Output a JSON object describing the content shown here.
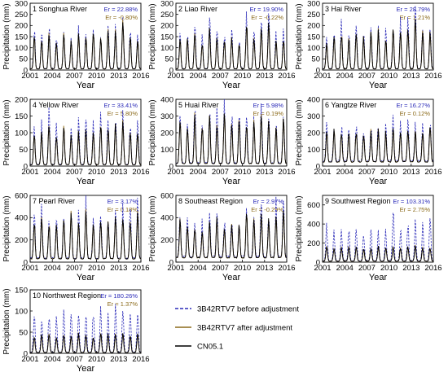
{
  "chart_data": [
    {
      "type": "line",
      "title": "1 Songhua River",
      "xlabel": "Year",
      "ylabel": "Precipitation (mm)",
      "ylim": [
        0,
        300
      ],
      "yticks": [
        0,
        50,
        100,
        150,
        200,
        250,
        300
      ],
      "x_ticks": [
        "2001",
        "2004",
        "2007",
        "2010",
        "2013",
        "2016"
      ],
      "x_range": [
        2001,
        2016
      ],
      "er_before": "Er = 22.88%",
      "er_after": "Er = -0.80%",
      "annual_peaks_cn05": [
        150,
        140,
        160,
        130,
        155,
        125,
        160,
        150,
        170,
        140,
        180,
        165,
        230,
        150,
        140
      ],
      "dry_min": 5
    },
    {
      "type": "line",
      "title": "2 Liao River",
      "xlabel": "Year",
      "ylabel": "Precipitation (mm)",
      "ylim": [
        0,
        300
      ],
      "yticks": [
        0,
        50,
        100,
        150,
        200,
        250,
        300
      ],
      "x_ticks": [
        "2001",
        "2004",
        "2007",
        "2010",
        "2013",
        "2016"
      ],
      "x_range": [
        2001,
        2016
      ],
      "er_before": "Er = 19.90%",
      "er_after": "Er = -0.22%",
      "annual_peaks_cn05": [
        130,
        140,
        160,
        120,
        190,
        150,
        130,
        145,
        120,
        210,
        150,
        200,
        215,
        130,
        140
      ],
      "dry_min": 5
    },
    {
      "type": "line",
      "title": "3 Hai River",
      "xlabel": "Year",
      "ylabel": "Precipitation (mm)",
      "ylim": [
        0,
        300
      ],
      "yticks": [
        0,
        50,
        100,
        150,
        200,
        250,
        300
      ],
      "x_ticks": [
        "2001",
        "2004",
        "2007",
        "2010",
        "2013",
        "2016"
      ],
      "x_range": [
        2001,
        2016
      ],
      "er_before": "Er = 28.79%",
      "er_after": "Er = 1.21%",
      "annual_peaks_cn05": [
        130,
        150,
        160,
        140,
        175,
        150,
        165,
        170,
        140,
        180,
        175,
        195,
        240,
        160,
        160
      ],
      "dry_min": 5
    },
    {
      "type": "line",
      "title": "4 Yellow River",
      "xlabel": "Year",
      "ylabel": "Precipitation (mm)",
      "ylim": [
        0,
        200
      ],
      "yticks": [
        0,
        50,
        100,
        150,
        200
      ],
      "x_ticks": [
        "2001",
        "2004",
        "2007",
        "2010",
        "2013",
        "2016"
      ],
      "x_range": [
        2001,
        2016
      ],
      "er_before": "Er = 33.41%",
      "er_after": "Er = 5.80%",
      "annual_peaks_cn05": [
        95,
        100,
        130,
        95,
        115,
        90,
        100,
        110,
        100,
        120,
        115,
        120,
        130,
        105,
        105
      ],
      "dry_min": 4
    },
    {
      "type": "line",
      "title": "5 Huai River",
      "xlabel": "Year",
      "ylabel": "Precipitation (mm)",
      "ylim": [
        0,
        400
      ],
      "yticks": [
        0,
        100,
        200,
        300,
        400
      ],
      "x_ticks": [
        "2001",
        "2004",
        "2007",
        "2010",
        "2013",
        "2016"
      ],
      "x_range": [
        2001,
        2016
      ],
      "er_before": "Er = 5.98%",
      "er_after": "Er = 0.19%",
      "annual_peaks_cn05": [
        270,
        230,
        300,
        240,
        290,
        260,
        300,
        250,
        270,
        245,
        250,
        300,
        260,
        230,
        285
      ],
      "dry_min": 15
    },
    {
      "type": "line",
      "title": "6 Yangtze River",
      "xlabel": "Year",
      "ylabel": "Precipitation (mm)",
      "ylim": [
        0,
        400
      ],
      "yticks": [
        0,
        100,
        200,
        300,
        400
      ],
      "x_ticks": [
        "2001",
        "2004",
        "2007",
        "2010",
        "2013",
        "2016"
      ],
      "x_range": [
        2001,
        2016
      ],
      "er_before": "Er = 16.27%",
      "er_after": "Er = 0.12%",
      "annual_peaks_cn05": [
        200,
        215,
        210,
        195,
        210,
        190,
        205,
        215,
        200,
        225,
        210,
        230,
        205,
        210,
        240
      ],
      "dry_min": 25
    },
    {
      "type": "line",
      "title": "7 Pearl River",
      "xlabel": "Year",
      "ylabel": "Precipitation (mm)",
      "ylim": [
        0,
        600
      ],
      "yticks": [
        0,
        200,
        400,
        600
      ],
      "x_ticks": [
        "2001",
        "2004",
        "2007",
        "2010",
        "2013",
        "2016"
      ],
      "x_range": [
        2001,
        2016
      ],
      "er_before": "Er = 3.17%",
      "er_after": "Er = 0.18%",
      "annual_peaks_cn05": [
        360,
        380,
        340,
        330,
        390,
        420,
        350,
        460,
        320,
        380,
        360,
        400,
        410,
        380,
        440
      ],
      "dry_min": 30
    },
    {
      "type": "line",
      "title": "8 Southeast Region",
      "xlabel": "Year",
      "ylabel": "Precipitation (mm)",
      "ylim": [
        0,
        600
      ],
      "yticks": [
        0,
        200,
        400,
        600
      ],
      "x_ticks": [
        "2001",
        "2004",
        "2007",
        "2010",
        "2013",
        "2016"
      ],
      "x_range": [
        2001,
        2016
      ],
      "er_before": "Er = 2.97%",
      "er_after": "Er = -0.29%",
      "annual_peaks_cn05": [
        370,
        330,
        310,
        280,
        350,
        400,
        300,
        320,
        330,
        440,
        360,
        450,
        380,
        420,
        480
      ],
      "dry_min": 40
    },
    {
      "type": "line",
      "title": "9 Southwest Region",
      "xlabel": "Year",
      "ylabel": "Precipitation (mm)",
      "ylim": [
        0,
        700
      ],
      "yticks": [
        0,
        200,
        400,
        600
      ],
      "x_ticks": [
        "2001",
        "2004",
        "2007",
        "2010",
        "2013",
        "2016"
      ],
      "x_range": [
        2001,
        2016
      ],
      "er_before": "Er = 103.31%",
      "er_after": "Er = 2.75%",
      "annual_peaks_cn05": [
        160,
        150,
        155,
        150,
        160,
        145,
        150,
        160,
        155,
        165,
        150,
        160,
        165,
        150,
        160
      ],
      "annual_peaks_before": [
        380,
        300,
        320,
        340,
        360,
        310,
        320,
        300,
        330,
        580,
        340,
        400,
        430,
        380,
        440
      ],
      "dry_min": 10
    },
    {
      "type": "line",
      "title": "10 Northwest Region",
      "xlabel": "Year",
      "ylabel": "Precipitation (mm)",
      "ylim": [
        0,
        150
      ],
      "yticks": [
        0,
        50,
        100,
        150
      ],
      "x_ticks": [
        "2001",
        "2004",
        "2007",
        "2010",
        "2013",
        "2016"
      ],
      "x_range": [
        2001,
        2016
      ],
      "er_before": "Er = 180.26%",
      "er_after": "Er = 1.37%",
      "annual_peaks_cn05": [
        40,
        42,
        45,
        38,
        44,
        40,
        46,
        42,
        40,
        48,
        44,
        46,
        48,
        42,
        45
      ],
      "annual_peaks_before": [
        100,
        80,
        90,
        85,
        95,
        90,
        105,
        95,
        100,
        110,
        90,
        115,
        120,
        105,
        110
      ],
      "dry_min": 2
    }
  ],
  "legend": [
    {
      "label": "3B42RTV7 before adjustment",
      "color": "#2a2ab8",
      "style": "dashed"
    },
    {
      "label": "3B42RTV7 after adjustment",
      "color": "#8b6a1a",
      "style": "solid"
    },
    {
      "label": "CN05.1",
      "color": "#000000",
      "style": "solid"
    }
  ],
  "colors": {
    "er_before": "#2a2ab8",
    "er_after": "#8b6a1a",
    "before": "#2a2ab8",
    "after": "#9b7a2a",
    "obs": "#000000"
  }
}
